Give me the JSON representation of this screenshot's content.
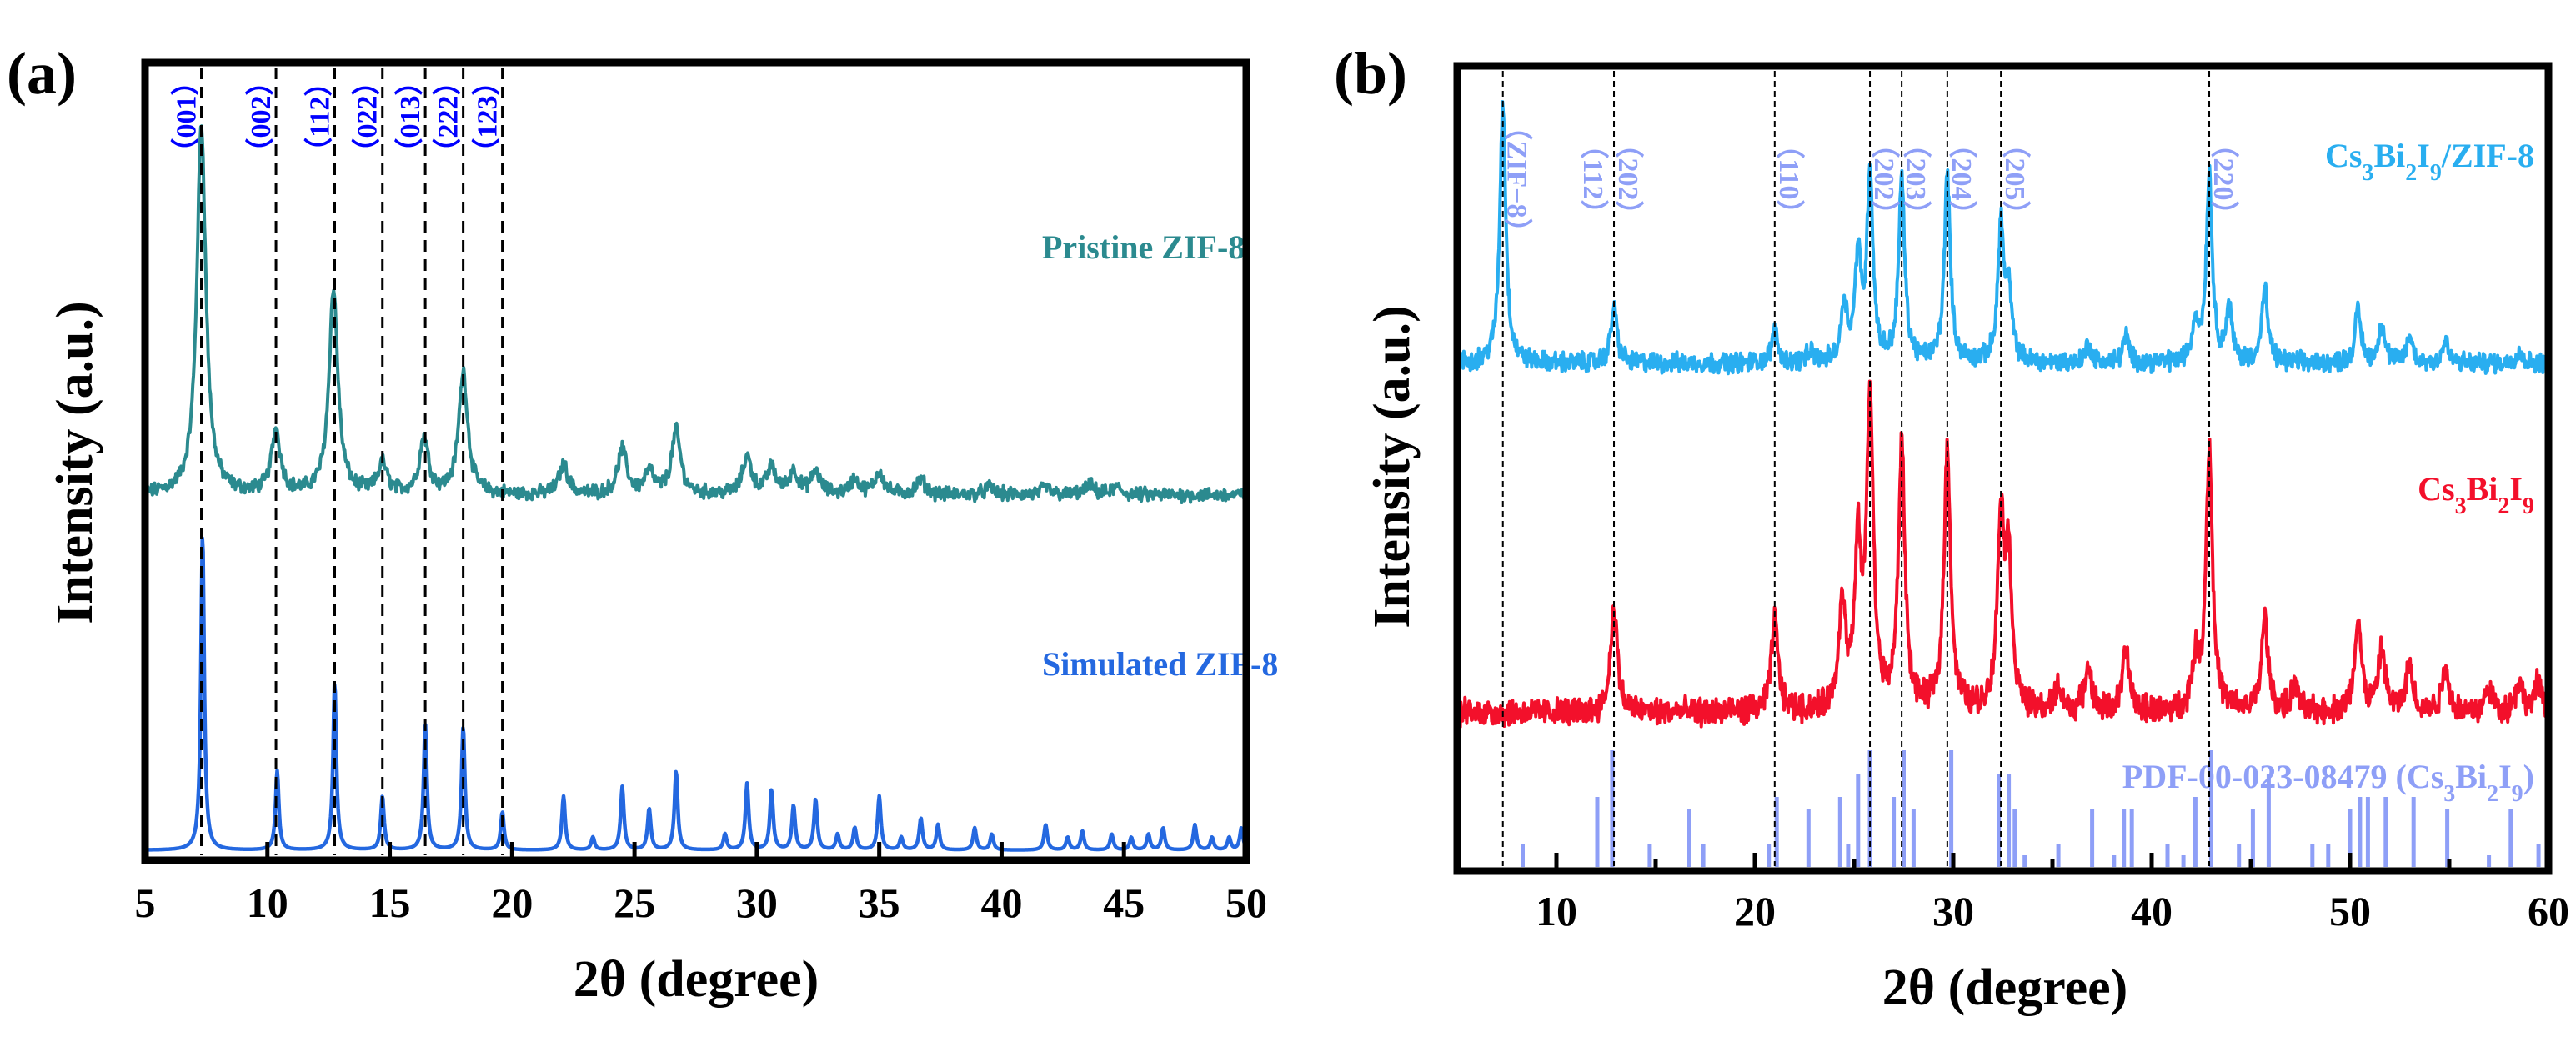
{
  "chart_data": [
    {
      "panel_label": "(a)",
      "type": "line",
      "xlabel": "2θ (degree)",
      "ylabel": "Intensity (a.u.)",
      "xlim": [
        5,
        50
      ],
      "xticks": [
        "5",
        "10",
        "15",
        "20",
        "25",
        "30",
        "35",
        "40",
        "45",
        "50"
      ],
      "grid": false,
      "reference_lines": [
        {
          "x": 7.3,
          "label": "（001）"
        },
        {
          "x": 10.35,
          "label": "（002）"
        },
        {
          "x": 12.75,
          "label": "（112）"
        },
        {
          "x": 14.7,
          "label": "（022）"
        },
        {
          "x": 16.45,
          "label": "（013）"
        },
        {
          "x": 18.0,
          "label": "（222）"
        },
        {
          "x": 19.6,
          "label": "（123）"
        }
      ],
      "series": [
        {
          "name": "Pristine ZIF-8",
          "color": "#2b8a8f",
          "offset": 0.55,
          "scale": 1.0,
          "width": 0.22,
          "noise": 0.015,
          "peaks": [
            [
              7.3,
              1.0
            ],
            [
              10.35,
              0.17
            ],
            [
              12.7,
              0.55
            ],
            [
              14.7,
              0.08
            ],
            [
              16.4,
              0.15
            ],
            [
              18.0,
              0.33
            ],
            [
              22.1,
              0.08
            ],
            [
              24.5,
              0.12
            ],
            [
              25.6,
              0.06
            ],
            [
              26.7,
              0.17
            ],
            [
              29.6,
              0.1
            ],
            [
              30.6,
              0.07
            ],
            [
              31.5,
              0.06
            ],
            [
              32.4,
              0.06
            ],
            [
              34.0,
              0.04
            ],
            [
              35.0,
              0.06
            ],
            [
              36.7,
              0.04
            ],
            [
              39.5,
              0.02
            ],
            [
              41.8,
              0.02
            ],
            [
              43.6,
              0.025
            ],
            [
              44.7,
              0.02
            ]
          ]
        },
        {
          "name": "Simulated ZIF-8",
          "color": "#2468e0",
          "offset": 0.0,
          "scale": 0.86,
          "width": 0.08,
          "noise": 0,
          "peaks": [
            [
              7.35,
              1.0
            ],
            [
              10.4,
              0.25
            ],
            [
              12.75,
              0.53
            ],
            [
              14.7,
              0.17
            ],
            [
              16.45,
              0.4
            ],
            [
              18.0,
              0.39
            ],
            [
              19.6,
              0.12
            ],
            [
              22.1,
              0.17
            ],
            [
              23.3,
              0.04
            ],
            [
              24.5,
              0.2
            ],
            [
              25.6,
              0.13
            ],
            [
              26.7,
              0.25
            ],
            [
              28.7,
              0.05
            ],
            [
              29.6,
              0.21
            ],
            [
              30.6,
              0.19
            ],
            [
              31.5,
              0.14
            ],
            [
              32.4,
              0.16
            ],
            [
              33.3,
              0.05
            ],
            [
              34.0,
              0.07
            ],
            [
              35.0,
              0.17
            ],
            [
              35.9,
              0.04
            ],
            [
              36.7,
              0.1
            ],
            [
              37.4,
              0.08
            ],
            [
              38.9,
              0.07
            ],
            [
              39.6,
              0.05
            ],
            [
              41.8,
              0.08
            ],
            [
              42.7,
              0.04
            ],
            [
              43.3,
              0.06
            ],
            [
              44.5,
              0.05
            ],
            [
              45.3,
              0.04
            ],
            [
              46.0,
              0.05
            ],
            [
              46.6,
              0.07
            ],
            [
              47.9,
              0.08
            ],
            [
              48.6,
              0.04
            ],
            [
              49.3,
              0.04
            ],
            [
              49.8,
              0.07
            ]
          ]
        }
      ]
    },
    {
      "panel_label": "(b)",
      "type": "line",
      "xlabel": "2θ (degree)",
      "ylabel": "Intensity (a.u.)",
      "xlim": [
        5,
        60
      ],
      "xticks": [
        "10",
        "20",
        "30",
        "40",
        "50",
        "60"
      ],
      "grid": false,
      "reference_lines": [
        {
          "x": 7.3,
          "label": "（ZIF−8）",
          "side": "right"
        },
        {
          "x": 12.9,
          "label": "（112）",
          "side": "left"
        },
        {
          "x": 12.9,
          "label": "（202）",
          "side": "right"
        },
        {
          "x": 21.0,
          "label": "（110）",
          "side": "right"
        },
        {
          "x": 25.8,
          "label": "（202）",
          "side": "right"
        },
        {
          "x": 27.4,
          "label": "（203）",
          "side": "right"
        },
        {
          "x": 29.7,
          "label": "（204）",
          "side": "right"
        },
        {
          "x": 32.4,
          "label": "（205）",
          "side": "right"
        },
        {
          "x": 42.9,
          "label": "（220）",
          "side": "right"
        }
      ],
      "series": [
        {
          "name": "Cs3Bi2I9/ZIF-8",
          "color": "#29aef0",
          "offset": 0.63,
          "scale": 0.85,
          "width": 0.18,
          "noise": 0.03,
          "peaks": [
            [
              7.3,
              1.0
            ],
            [
              12.9,
              0.22
            ],
            [
              21.0,
              0.12
            ],
            [
              22.8,
              0.04
            ],
            [
              24.5,
              0.22
            ],
            [
              25.2,
              0.4
            ],
            [
              25.8,
              0.72
            ],
            [
              27.4,
              0.7
            ],
            [
              29.7,
              0.72
            ],
            [
              32.4,
              0.52
            ],
            [
              32.8,
              0.25
            ],
            [
              36.8,
              0.07
            ],
            [
              38.7,
              0.1
            ],
            [
              42.2,
              0.15
            ],
            [
              42.9,
              0.72
            ],
            [
              43.9,
              0.2
            ],
            [
              45.7,
              0.28
            ],
            [
              50.4,
              0.2
            ],
            [
              51.6,
              0.15
            ],
            [
              53.0,
              0.1
            ],
            [
              54.8,
              0.08
            ],
            [
              58.5,
              0.05
            ]
          ]
        },
        {
          "name": "Cs3Bi2I9",
          "color": "#f3102b",
          "offset": 0.2,
          "scale": 1.0,
          "width": 0.2,
          "noise": 0.035,
          "peaks": [
            [
              12.9,
              0.35
            ],
            [
              21.0,
              0.3
            ],
            [
              24.4,
              0.35
            ],
            [
              25.2,
              0.5
            ],
            [
              25.8,
              1.0
            ],
            [
              27.4,
              0.85
            ],
            [
              29.7,
              0.85
            ],
            [
              32.4,
              0.62
            ],
            [
              32.8,
              0.45
            ],
            [
              35.3,
              0.08
            ],
            [
              36.8,
              0.15
            ],
            [
              38.7,
              0.2
            ],
            [
              42.2,
              0.15
            ],
            [
              42.9,
              0.85
            ],
            [
              45.7,
              0.3
            ],
            [
              47.2,
              0.08
            ],
            [
              50.4,
              0.3
            ],
            [
              51.6,
              0.2
            ],
            [
              53.0,
              0.15
            ],
            [
              54.8,
              0.15
            ],
            [
              57.0,
              0.08
            ],
            [
              58.5,
              0.1
            ],
            [
              59.5,
              0.1
            ]
          ]
        }
      ],
      "reference_pattern": {
        "name": "PDF-00-023-08479 (Cs3Bi2I9)",
        "color": "#8e9ff7",
        "type": "stick",
        "sticks": [
          [
            8.3,
            0.2
          ],
          [
            12.06,
            0.6
          ],
          [
            12.81,
            1.0
          ],
          [
            14.7,
            0.2
          ],
          [
            16.7,
            0.5
          ],
          [
            17.4,
            0.2
          ],
          [
            20.7,
            0.2
          ],
          [
            21.1,
            0.6
          ],
          [
            22.7,
            0.5
          ],
          [
            24.3,
            0.6
          ],
          [
            24.7,
            0.2
          ],
          [
            25.2,
            0.8
          ],
          [
            25.8,
            1.0
          ],
          [
            27.0,
            0.6
          ],
          [
            27.5,
            1.0
          ],
          [
            28.0,
            0.5
          ],
          [
            29.9,
            1.0
          ],
          [
            32.3,
            0.8
          ],
          [
            32.8,
            0.8
          ],
          [
            33.1,
            0.5
          ],
          [
            33.6,
            0.1
          ],
          [
            35.3,
            0.2
          ],
          [
            37.0,
            0.5
          ],
          [
            38.1,
            0.1
          ],
          [
            38.6,
            0.5
          ],
          [
            39.0,
            0.5
          ],
          [
            40.8,
            0.2
          ],
          [
            41.6,
            0.1
          ],
          [
            42.2,
            0.6
          ],
          [
            43.0,
            1.0
          ],
          [
            44.4,
            0.2
          ],
          [
            45.1,
            0.5
          ],
          [
            45.9,
            0.8
          ],
          [
            48.1,
            0.2
          ],
          [
            48.9,
            0.2
          ],
          [
            50.0,
            0.5
          ],
          [
            50.5,
            0.6
          ],
          [
            50.9,
            0.6
          ],
          [
            51.8,
            0.6
          ],
          [
            53.2,
            0.6
          ],
          [
            54.9,
            0.5
          ],
          [
            57.0,
            0.1
          ],
          [
            58.1,
            0.5
          ],
          [
            59.5,
            0.2
          ]
        ]
      }
    }
  ]
}
